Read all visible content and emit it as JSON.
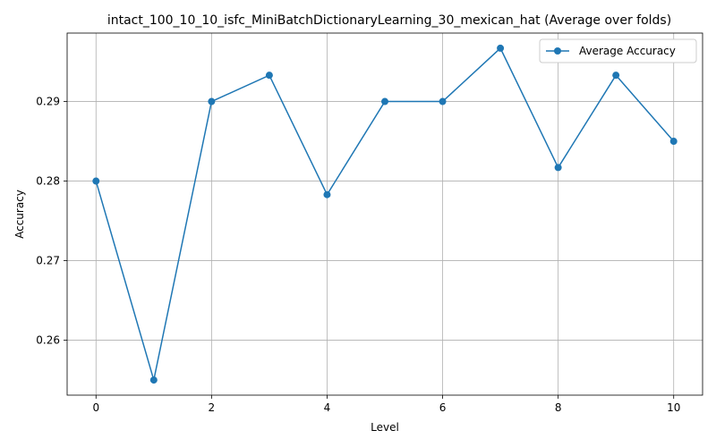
{
  "chart_data": {
    "type": "line",
    "title": "intact_100_10_10_isfc_MiniBatchDictionaryLearning_30_mexican_hat (Average over folds)",
    "xlabel": "Level",
    "ylabel": "Accuracy",
    "x": [
      0,
      1,
      2,
      3,
      4,
      5,
      6,
      7,
      8,
      9,
      10
    ],
    "series": [
      {
        "name": "Average Accuracy",
        "color": "#1f77b4",
        "marker": "circle",
        "values": [
          0.28,
          0.255,
          0.29,
          0.2933,
          0.2783,
          0.29,
          0.29,
          0.2967,
          0.2817,
          0.2933,
          0.285
        ]
      }
    ],
    "xlim": [
      -0.5,
      10.5
    ],
    "ylim": [
      0.2531,
      0.2986
    ],
    "xticks": [
      0,
      2,
      4,
      6,
      8,
      10
    ],
    "xtick_labels": [
      "0",
      "2",
      "4",
      "6",
      "8",
      "10"
    ],
    "yticks": [
      0.26,
      0.27,
      0.28,
      0.29
    ],
    "ytick_labels": [
      "0.26",
      "0.27",
      "0.28",
      "0.29"
    ],
    "grid": true,
    "legend_position": "top-right"
  }
}
